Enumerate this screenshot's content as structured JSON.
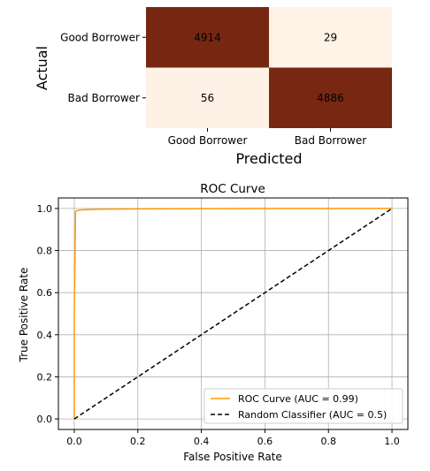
{
  "chart_data": [
    {
      "type": "heatmap",
      "row_labels": [
        "Good Borrower",
        "Bad Borrower"
      ],
      "col_labels": [
        "Good Borrower",
        "Bad Borrower"
      ],
      "values": [
        [
          4914,
          29
        ],
        [
          56,
          4886
        ]
      ],
      "ylabel": "Actual",
      "xlabel": "Predicted",
      "colors": {
        "high": "#772711",
        "low": "#fff3e7"
      }
    },
    {
      "type": "line",
      "title": "ROC Curve",
      "xlabel": "False Positive Rate",
      "ylabel": "True Positive Rate",
      "xlim": [
        -0.05,
        1.05
      ],
      "ylim": [
        -0.05,
        1.05
      ],
      "xticks": [
        "0.0",
        "0.2",
        "0.4",
        "0.6",
        "0.8",
        "1.0"
      ],
      "yticks": [
        "0.0",
        "0.2",
        "0.4",
        "0.6",
        "0.8",
        "1.0"
      ],
      "grid": true,
      "legend_position": "lower-right",
      "series": [
        {
          "name": "ROC Curve (AUC = 0.99)",
          "color": "#ff9900",
          "style": "solid",
          "x": [
            0.0,
            0.0,
            0.004,
            0.008,
            0.02,
            0.05,
            0.1,
            0.2,
            0.4,
            0.6,
            0.8,
            1.0
          ],
          "y": [
            0.0,
            0.5,
            0.985,
            0.99,
            0.993,
            0.995,
            0.997,
            0.998,
            0.999,
            1.0,
            1.0,
            1.0
          ]
        },
        {
          "name": "Random Classifier (AUC = 0.5)",
          "color": "#000000",
          "style": "dashed",
          "x": [
            0,
            1
          ],
          "y": [
            0,
            1
          ]
        }
      ]
    }
  ]
}
